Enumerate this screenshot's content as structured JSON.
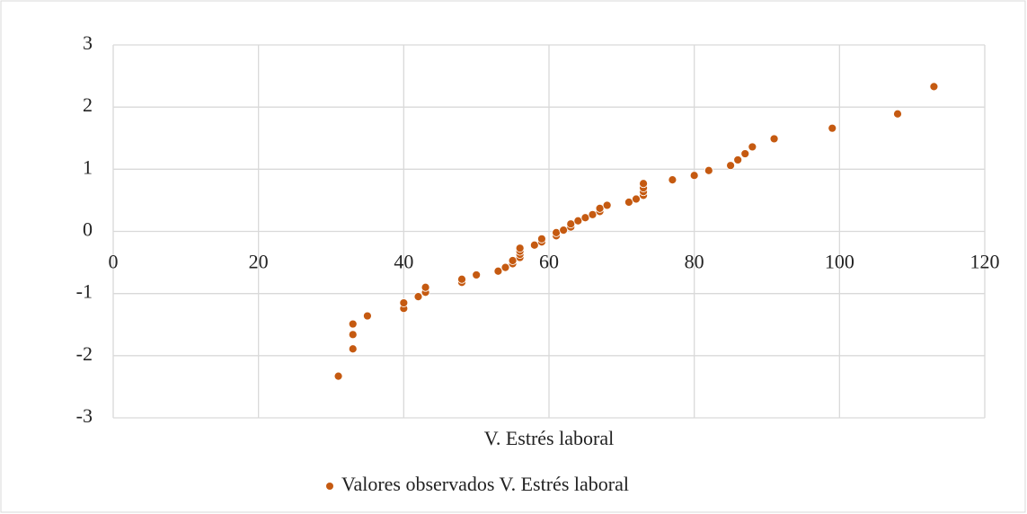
{
  "chart_data": {
    "type": "scatter",
    "x_label": "V. Estrés laboral",
    "legend": "bottom",
    "grid": true,
    "series": [
      {
        "name": "Valores observados V. Estrés laboral",
        "color": "#c55a11",
        "x": [
          31,
          33,
          33,
          33,
          35,
          40,
          40,
          42,
          43,
          43,
          48,
          48,
          50,
          53,
          54,
          55,
          55,
          56,
          56,
          56,
          56,
          58,
          59,
          59,
          61,
          61,
          62,
          63,
          63,
          64,
          65,
          66,
          67,
          67,
          68,
          71,
          72,
          73,
          73,
          73,
          73,
          77,
          80,
          82,
          85,
          86,
          87,
          88,
          91,
          99,
          108,
          113
        ],
        "values": [
          -2.33,
          -1.89,
          -1.66,
          -1.49,
          -1.36,
          -1.24,
          -1.15,
          -1.05,
          -0.98,
          -0.9,
          -0.82,
          -0.77,
          -0.7,
          -0.64,
          -0.58,
          -0.52,
          -0.47,
          -0.42,
          -0.37,
          -0.32,
          -0.27,
          -0.22,
          -0.17,
          -0.12,
          -0.07,
          -0.02,
          0.02,
          0.07,
          0.12,
          0.17,
          0.22,
          0.27,
          0.32,
          0.37,
          0.42,
          0.47,
          0.52,
          0.58,
          0.64,
          0.7,
          0.77,
          0.83,
          0.9,
          0.98,
          1.06,
          1.15,
          1.25,
          1.36,
          1.49,
          1.66,
          1.89,
          2.33
        ]
      }
    ],
    "xlim": [
      0,
      120
    ],
    "xticks": [
      0,
      20,
      40,
      60,
      80,
      100,
      120
    ],
    "ylim": [
      -3,
      3
    ],
    "yticks": [
      -3,
      -2,
      -1,
      0,
      1,
      2,
      3
    ]
  }
}
